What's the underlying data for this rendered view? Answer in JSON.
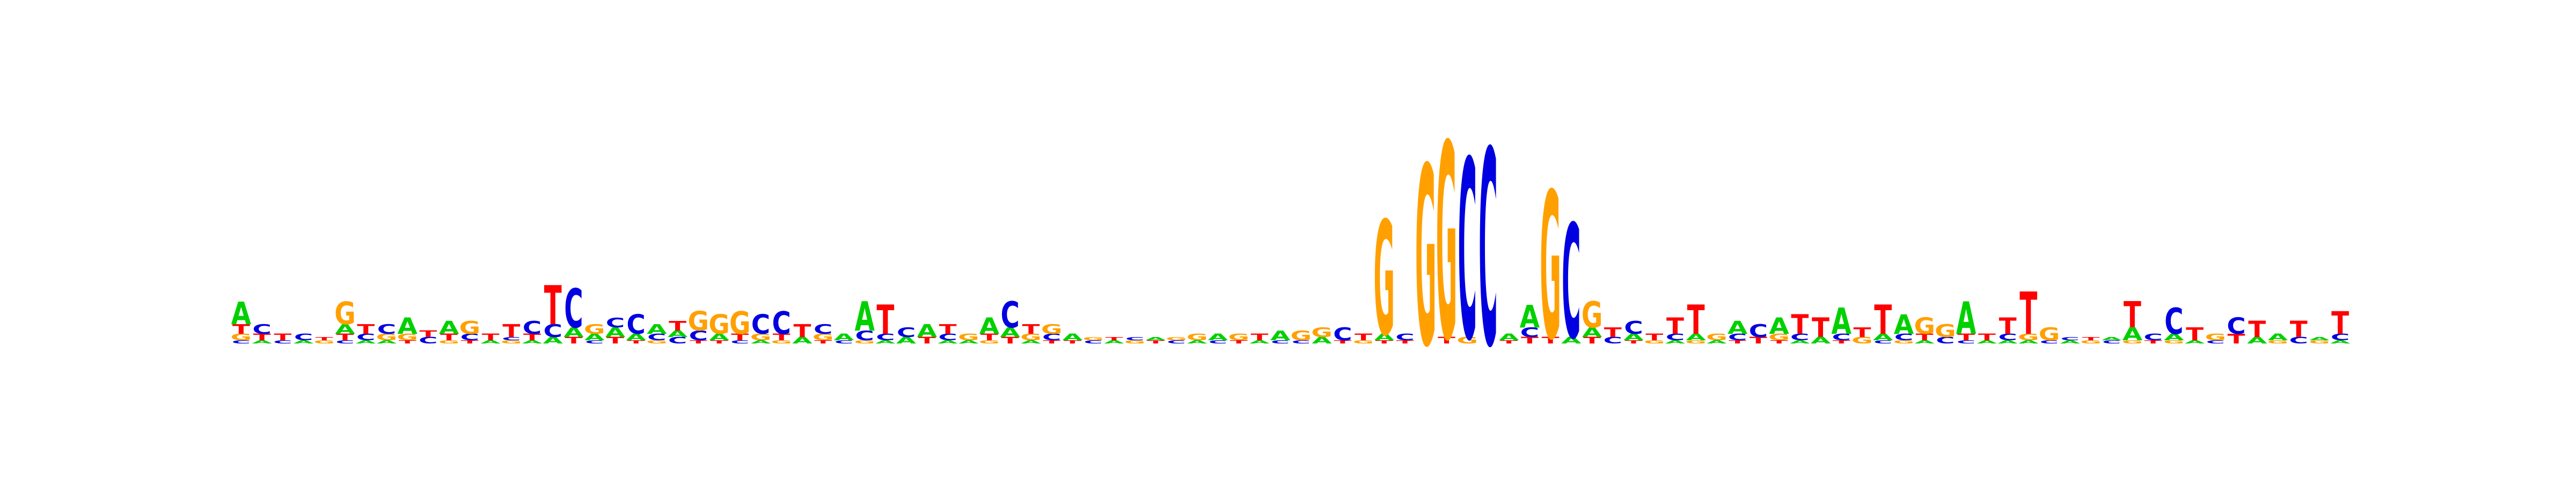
{
  "figure": "sequence-logo",
  "colors": {
    "A": "#00d000",
    "C": "#0000e0",
    "G": "#ffa000",
    "T": "#ff0000"
  },
  "positions": [
    [
      [
        "A",
        0.07
      ],
      [
        "T",
        0.03
      ],
      [
        "G",
        0.02
      ],
      [
        "C",
        0.01
      ]
    ],
    [
      [
        "C",
        0.03
      ],
      [
        "T",
        0.02
      ],
      [
        "A",
        0.01
      ]
    ],
    [
      [
        "T",
        0.02
      ],
      [
        "C",
        0.01
      ]
    ],
    [
      [
        "C",
        0.02
      ],
      [
        "A",
        0.01
      ]
    ],
    [
      [
        "G",
        0.01
      ],
      [
        "T",
        0.01
      ]
    ],
    [
      [
        "G",
        0.07
      ],
      [
        "A",
        0.03
      ],
      [
        "T",
        0.02
      ],
      [
        "C",
        0.01
      ]
    ],
    [
      [
        "T",
        0.03
      ],
      [
        "C",
        0.02
      ],
      [
        "A",
        0.01
      ]
    ],
    [
      [
        "C",
        0.03
      ],
      [
        "G",
        0.02
      ],
      [
        "A",
        0.01
      ]
    ],
    [
      [
        "A",
        0.05
      ],
      [
        "G",
        0.02
      ],
      [
        "T",
        0.01
      ]
    ],
    [
      [
        "C",
        0.02
      ],
      [
        "T",
        0.02
      ]
    ],
    [
      [
        "A",
        0.04
      ],
      [
        "T",
        0.02
      ],
      [
        "G",
        0.01
      ]
    ],
    [
      [
        "G",
        0.04
      ],
      [
        "C",
        0.02
      ],
      [
        "T",
        0.01
      ]
    ],
    [
      [
        "T",
        0.02
      ],
      [
        "A",
        0.01
      ]
    ],
    [
      [
        "T",
        0.04
      ],
      [
        "G",
        0.01
      ],
      [
        "C",
        0.01
      ]
    ],
    [
      [
        "C",
        0.04
      ],
      [
        "T",
        0.02
      ],
      [
        "A",
        0.01
      ]
    ],
    [
      [
        "T",
        0.12
      ],
      [
        "C",
        0.04
      ],
      [
        "A",
        0.02
      ]
    ],
    [
      [
        "C",
        0.12
      ],
      [
        "A",
        0.03
      ],
      [
        "T",
        0.02
      ]
    ],
    [
      [
        "G",
        0.03
      ],
      [
        "A",
        0.02
      ],
      [
        "C",
        0.01
      ]
    ],
    [
      [
        "A",
        0.03
      ],
      [
        "C",
        0.03
      ],
      [
        "T",
        0.02
      ]
    ],
    [
      [
        "C",
        0.06
      ],
      [
        "A",
        0.02
      ],
      [
        "T",
        0.01
      ]
    ],
    [
      [
        "A",
        0.03
      ],
      [
        "C",
        0.02
      ],
      [
        "G",
        0.01
      ]
    ],
    [
      [
        "T",
        0.03
      ],
      [
        "C",
        0.02
      ],
      [
        "A",
        0.02
      ]
    ],
    [
      [
        "G",
        0.06
      ],
      [
        "C",
        0.03
      ],
      [
        "T",
        0.01
      ]
    ],
    [
      [
        "G",
        0.06
      ],
      [
        "A",
        0.02
      ],
      [
        "T",
        0.01
      ]
    ],
    [
      [
        "G",
        0.07
      ],
      [
        "T",
        0.02
      ],
      [
        "C",
        0.01
      ]
    ],
    [
      [
        "C",
        0.06
      ],
      [
        "G",
        0.02
      ],
      [
        "A",
        0.01
      ]
    ],
    [
      [
        "C",
        0.07
      ],
      [
        "T",
        0.02
      ],
      [
        "G",
        0.01
      ]
    ],
    [
      [
        "T",
        0.04
      ],
      [
        "A",
        0.02
      ]
    ],
    [
      [
        "C",
        0.03
      ],
      [
        "G",
        0.02
      ],
      [
        "T",
        0.01
      ]
    ],
    [
      [
        "A",
        0.02
      ],
      [
        "C",
        0.01
      ]
    ],
    [
      [
        "A",
        0.09
      ],
      [
        "C",
        0.03
      ],
      [
        "G",
        0.01
      ]
    ],
    [
      [
        "T",
        0.09
      ],
      [
        "C",
        0.02
      ],
      [
        "A",
        0.01
      ]
    ],
    [
      [
        "C",
        0.03
      ],
      [
        "A",
        0.02
      ]
    ],
    [
      [
        "A",
        0.04
      ],
      [
        "T",
        0.02
      ]
    ],
    [
      [
        "T",
        0.03
      ],
      [
        "C",
        0.02
      ],
      [
        "A",
        0.01
      ]
    ],
    [
      [
        "G",
        0.02
      ],
      [
        "A",
        0.01
      ]
    ],
    [
      [
        "A",
        0.05
      ],
      [
        "T",
        0.02
      ],
      [
        "G",
        0.01
      ]
    ],
    [
      [
        "C",
        0.08
      ],
      [
        "A",
        0.03
      ],
      [
        "T",
        0.02
      ]
    ],
    [
      [
        "T",
        0.03
      ],
      [
        "G",
        0.02
      ],
      [
        "A",
        0.01
      ]
    ],
    [
      [
        "G",
        0.03
      ],
      [
        "C",
        0.02
      ],
      [
        "T",
        0.01
      ]
    ],
    [
      [
        "A",
        0.02
      ],
      [
        "T",
        0.01
      ]
    ],
    [
      [
        "C",
        0.01
      ],
      [
        "G",
        0.01
      ]
    ],
    [
      [
        "A",
        0.01
      ],
      [
        "T",
        0.01
      ]
    ],
    [
      [
        "G",
        0.01
      ],
      [
        "C",
        0.01
      ]
    ],
    [
      [
        "T",
        0.01
      ],
      [
        "A",
        0.01
      ]
    ],
    [
      [
        "C",
        0.01
      ],
      [
        "G",
        0.01
      ]
    ],
    [
      [
        "G",
        0.02
      ],
      [
        "A",
        0.01
      ]
    ],
    [
      [
        "A",
        0.02
      ],
      [
        "C",
        0.01
      ]
    ],
    [
      [
        "G",
        0.02
      ],
      [
        "T",
        0.01
      ]
    ],
    [
      [
        "T",
        0.02
      ],
      [
        "A",
        0.01
      ]
    ],
    [
      [
        "A",
        0.03
      ],
      [
        "C",
        0.01
      ]
    ],
    [
      [
        "G",
        0.03
      ],
      [
        "C",
        0.01
      ]
    ],
    [
      [
        "G",
        0.03
      ],
      [
        "A",
        0.02
      ]
    ],
    [
      [
        "C",
        0.04
      ],
      [
        "T",
        0.01
      ]
    ],
    [
      [
        "T",
        0.02
      ],
      [
        "G",
        0.01
      ]
    ],
    [
      [
        "G",
        0.35
      ],
      [
        "A",
        0.02
      ],
      [
        "T",
        0.01
      ]
    ],
    [
      [
        "C",
        0.02
      ],
      [
        "T",
        0.01
      ]
    ],
    [
      [
        "G",
        0.55
      ]
    ],
    [
      [
        "G",
        0.6
      ],
      [
        "T",
        0.02
      ]
    ],
    [
      [
        "C",
        0.55
      ],
      [
        "G",
        0.02
      ]
    ],
    [
      [
        "C",
        0.6
      ]
    ],
    [
      [
        "A",
        0.02
      ],
      [
        "T",
        0.01
      ]
    ],
    [
      [
        "A",
        0.07
      ],
      [
        "C",
        0.03
      ],
      [
        "T",
        0.02
      ]
    ],
    [
      [
        "G",
        0.45
      ],
      [
        "T",
        0.02
      ]
    ],
    [
      [
        "C",
        0.35
      ],
      [
        "A",
        0.02
      ]
    ],
    [
      [
        "G",
        0.08
      ],
      [
        "A",
        0.03
      ],
      [
        "T",
        0.02
      ]
    ],
    [
      [
        "T",
        0.03
      ],
      [
        "C",
        0.02
      ]
    ],
    [
      [
        "C",
        0.04
      ],
      [
        "A",
        0.02
      ],
      [
        "T",
        0.01
      ]
    ],
    [
      [
        "T",
        0.02
      ],
      [
        "G",
        0.01
      ]
    ],
    [
      [
        "T",
        0.05
      ],
      [
        "C",
        0.02
      ],
      [
        "A",
        0.01
      ]
    ],
    [
      [
        "T",
        0.09
      ],
      [
        "A",
        0.02
      ],
      [
        "G",
        0.01
      ]
    ],
    [
      [
        "G",
        0.02
      ],
      [
        "A",
        0.01
      ]
    ],
    [
      [
        "A",
        0.04
      ],
      [
        "C",
        0.02
      ],
      [
        "T",
        0.01
      ]
    ],
    [
      [
        "C",
        0.04
      ],
      [
        "T",
        0.02
      ]
    ],
    [
      [
        "A",
        0.05
      ],
      [
        "G",
        0.02
      ],
      [
        "T",
        0.01
      ]
    ],
    [
      [
        "T",
        0.06
      ],
      [
        "C",
        0.02
      ],
      [
        "A",
        0.01
      ]
    ],
    [
      [
        "T",
        0.06
      ],
      [
        "A",
        0.02
      ]
    ],
    [
      [
        "A",
        0.08
      ],
      [
        "C",
        0.02
      ],
      [
        "T",
        0.01
      ]
    ],
    [
      [
        "T",
        0.03
      ],
      [
        "G",
        0.02
      ]
    ],
    [
      [
        "T",
        0.09
      ],
      [
        "A",
        0.02
      ],
      [
        "C",
        0.01
      ]
    ],
    [
      [
        "A",
        0.06
      ],
      [
        "C",
        0.02
      ],
      [
        "G",
        0.01
      ]
    ],
    [
      [
        "G",
        0.05
      ],
      [
        "T",
        0.02
      ],
      [
        "A",
        0.01
      ]
    ],
    [
      [
        "G",
        0.04
      ],
      [
        "C",
        0.02
      ]
    ],
    [
      [
        "A",
        0.1
      ],
      [
        "T",
        0.02
      ],
      [
        "C",
        0.01
      ]
    ],
    [
      [
        "T",
        0.02
      ],
      [
        "A",
        0.01
      ]
    ],
    [
      [
        "T",
        0.05
      ],
      [
        "C",
        0.02
      ],
      [
        "A",
        0.01
      ]
    ],
    [
      [
        "T",
        0.13
      ],
      [
        "G",
        0.02
      ],
      [
        "A",
        0.01
      ]
    ],
    [
      [
        "G",
        0.04
      ],
      [
        "C",
        0.01
      ]
    ],
    [
      [
        "A",
        0.01
      ],
      [
        "C",
        0.01
      ]
    ],
    [
      [
        "G",
        0.01
      ],
      [
        "T",
        0.01
      ]
    ],
    [
      [
        "C",
        0.01
      ],
      [
        "A",
        0.01
      ]
    ],
    [
      [
        "T",
        0.08
      ],
      [
        "A",
        0.04
      ],
      [
        "G",
        0.01
      ]
    ],
    [
      [
        "C",
        0.02
      ],
      [
        "T",
        0.01
      ]
    ],
    [
      [
        "C",
        0.08
      ],
      [
        "A",
        0.02
      ],
      [
        "G",
        0.01
      ]
    ],
    [
      [
        "T",
        0.04
      ],
      [
        "A",
        0.01
      ]
    ],
    [
      [
        "G",
        0.02
      ],
      [
        "C",
        0.01
      ]
    ],
    [
      [
        "C",
        0.05
      ],
      [
        "T",
        0.03
      ]
    ],
    [
      [
        "T",
        0.05
      ],
      [
        "A",
        0.02
      ]
    ],
    [
      [
        "A",
        0.02
      ],
      [
        "G",
        0.01
      ]
    ],
    [
      [
        "T",
        0.05
      ],
      [
        "C",
        0.02
      ]
    ],
    [
      [
        "G",
        0.01
      ],
      [
        "A",
        0.01
      ]
    ],
    [
      [
        "T",
        0.07
      ],
      [
        "C",
        0.02
      ],
      [
        "A",
        0.01
      ]
    ]
  ]
}
